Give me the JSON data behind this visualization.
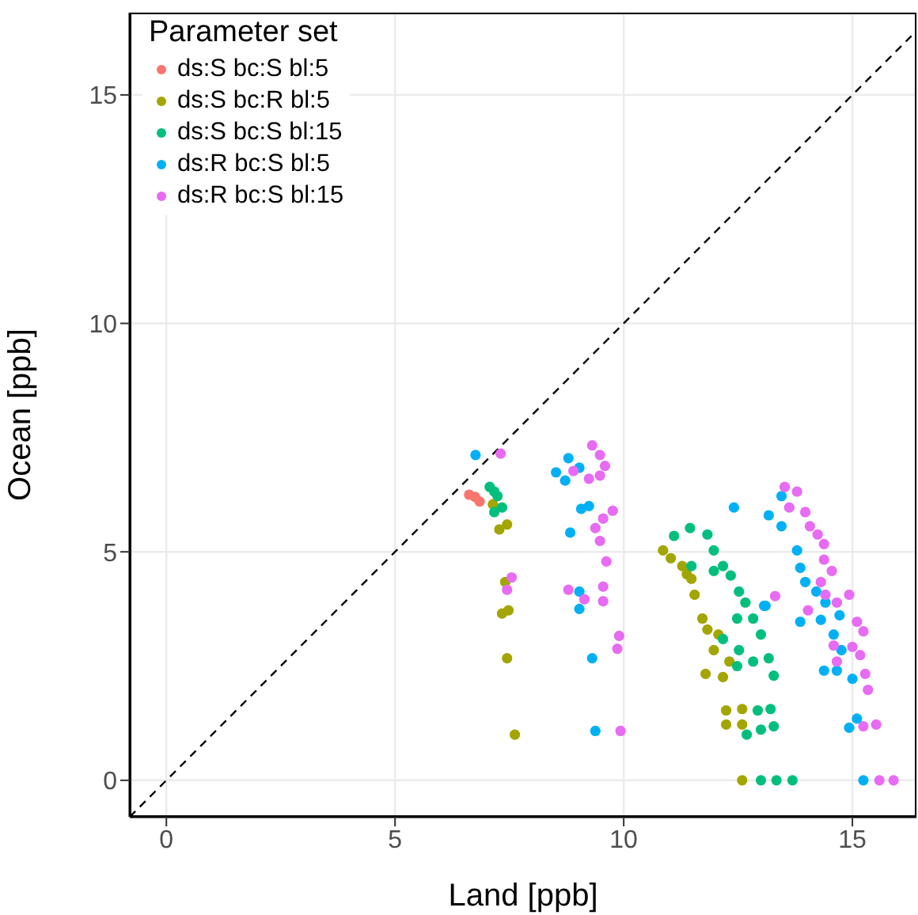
{
  "chart_data": {
    "type": "scatter",
    "xlabel": "Land [ppb]",
    "ylabel": "Ocean [ppb]",
    "legend_title": "Parameter set",
    "xlim": [
      -0.8,
      16.4
    ],
    "ylim": [
      -0.8,
      16.8
    ],
    "xticks": [
      0,
      5,
      10,
      15
    ],
    "yticks": [
      0,
      5,
      10,
      15
    ],
    "grid": true,
    "legend": "top left",
    "marker": "circle",
    "series": [
      {
        "name": "ds:S bc:S bl:5",
        "color": "#f8766d",
        "x": [
          6.62,
          6.75,
          6.85
        ],
        "values": [
          6.25,
          6.2,
          6.1
        ]
      },
      {
        "name": "ds:S bc:R bl:5",
        "color": "#a3a500",
        "x": [
          7.14,
          7.45,
          7.28,
          7.41,
          7.34,
          7.48,
          7.45,
          7.62,
          10.86,
          11.03,
          11.28,
          11.38,
          11.48,
          11.55,
          11.72,
          11.83,
          11.97,
          12.07,
          11.79,
          12.17,
          12.31,
          12.24,
          12.24,
          12.59,
          12.59,
          12.59
        ],
        "values": [
          6.04,
          5.6,
          5.49,
          4.34,
          3.65,
          3.72,
          2.67,
          1.0,
          5.03,
          4.86,
          4.69,
          4.51,
          4.41,
          4.06,
          3.54,
          3.3,
          2.85,
          3.19,
          2.33,
          2.26,
          2.6,
          1.53,
          1.22,
          1.56,
          1.22,
          0.0
        ]
      },
      {
        "name": "ds:S bc:S bl:15",
        "color": "#00bf7d",
        "x": [
          7.07,
          7.17,
          7.24,
          7.34,
          7.17,
          11.1,
          11.45,
          11.83,
          11.97,
          11.48,
          11.97,
          12.17,
          12.34,
          12.52,
          12.66,
          12.83,
          13.0,
          13.17,
          13.28,
          12.48,
          12.17,
          12.52,
          12.83,
          12.48,
          12.93,
          13.0,
          13.21,
          13.28,
          12.69,
          13.0,
          13.34,
          13.69
        ],
        "values": [
          6.42,
          6.32,
          6.22,
          5.97,
          5.87,
          5.35,
          5.52,
          5.38,
          5.03,
          4.69,
          4.58,
          4.69,
          4.48,
          4.13,
          3.89,
          3.54,
          3.19,
          2.67,
          2.29,
          3.54,
          3.09,
          2.85,
          2.6,
          2.5,
          1.53,
          1.11,
          1.56,
          1.18,
          1.0,
          0.0,
          0.0,
          0.0
        ]
      },
      {
        "name": "ds:R bc:S bl:5",
        "color": "#00b0f6",
        "x": [
          6.76,
          8.79,
          8.52,
          8.72,
          9.03,
          9.07,
          9.24,
          8.83,
          9.03,
          9.03,
          9.31,
          9.38,
          12.41,
          13.07,
          13.17,
          13.45,
          13.45,
          13.79,
          13.86,
          13.97,
          14.21,
          14.41,
          13.1,
          13.86,
          14.31,
          14.72,
          14.59,
          14.76,
          14.38,
          14.66,
          15.0,
          15.1,
          14.93,
          15.24
        ],
        "values": [
          7.12,
          7.05,
          6.74,
          6.56,
          6.84,
          5.94,
          6.0,
          5.42,
          4.13,
          3.75,
          2.67,
          1.08,
          5.97,
          3.82,
          5.8,
          6.22,
          5.56,
          5.03,
          4.65,
          4.34,
          4.13,
          3.89,
          3.82,
          3.47,
          3.51,
          3.61,
          3.19,
          2.85,
          2.4,
          2.4,
          2.22,
          1.35,
          1.15,
          0.0
        ]
      },
      {
        "name": "ds:R bc:S bl:15",
        "color": "#e76bf3",
        "x": [
          7.31,
          9.31,
          9.48,
          9.59,
          9.48,
          9.24,
          8.9,
          9.76,
          9.55,
          9.38,
          9.48,
          9.62,
          7.55,
          7.45,
          8.79,
          9.14,
          9.55,
          9.55,
          9.9,
          9.86,
          9.93,
          13.52,
          13.79,
          13.62,
          13.97,
          14.07,
          14.24,
          14.38,
          14.38,
          14.55,
          14.31,
          14.41,
          14.93,
          14.66,
          14.03,
          13.31,
          15.1,
          15.24,
          14.59,
          15.0,
          15.17,
          14.66,
          15.28,
          15.34,
          15.24,
          15.52,
          15.59,
          15.9
        ],
        "values": [
          7.15,
          7.33,
          7.12,
          6.88,
          6.67,
          6.6,
          6.77,
          5.9,
          5.73,
          5.52,
          5.24,
          4.79,
          4.44,
          4.17,
          4.17,
          3.96,
          4.24,
          3.92,
          3.16,
          2.88,
          1.08,
          6.42,
          6.32,
          5.97,
          5.87,
          5.56,
          5.38,
          5.17,
          4.83,
          4.58,
          4.34,
          4.06,
          4.06,
          3.89,
          3.72,
          4.03,
          3.47,
          3.26,
          2.95,
          2.92,
          2.74,
          2.6,
          2.33,
          1.98,
          1.18,
          1.22,
          0.0,
          0.0
        ]
      },
      {
        "type": "line",
        "color": "#000000",
        "line_style": "dashed",
        "marker": "none",
        "x": [
          -0.8,
          16.4
        ],
        "values": [
          -0.8,
          16.4
        ]
      }
    ]
  }
}
